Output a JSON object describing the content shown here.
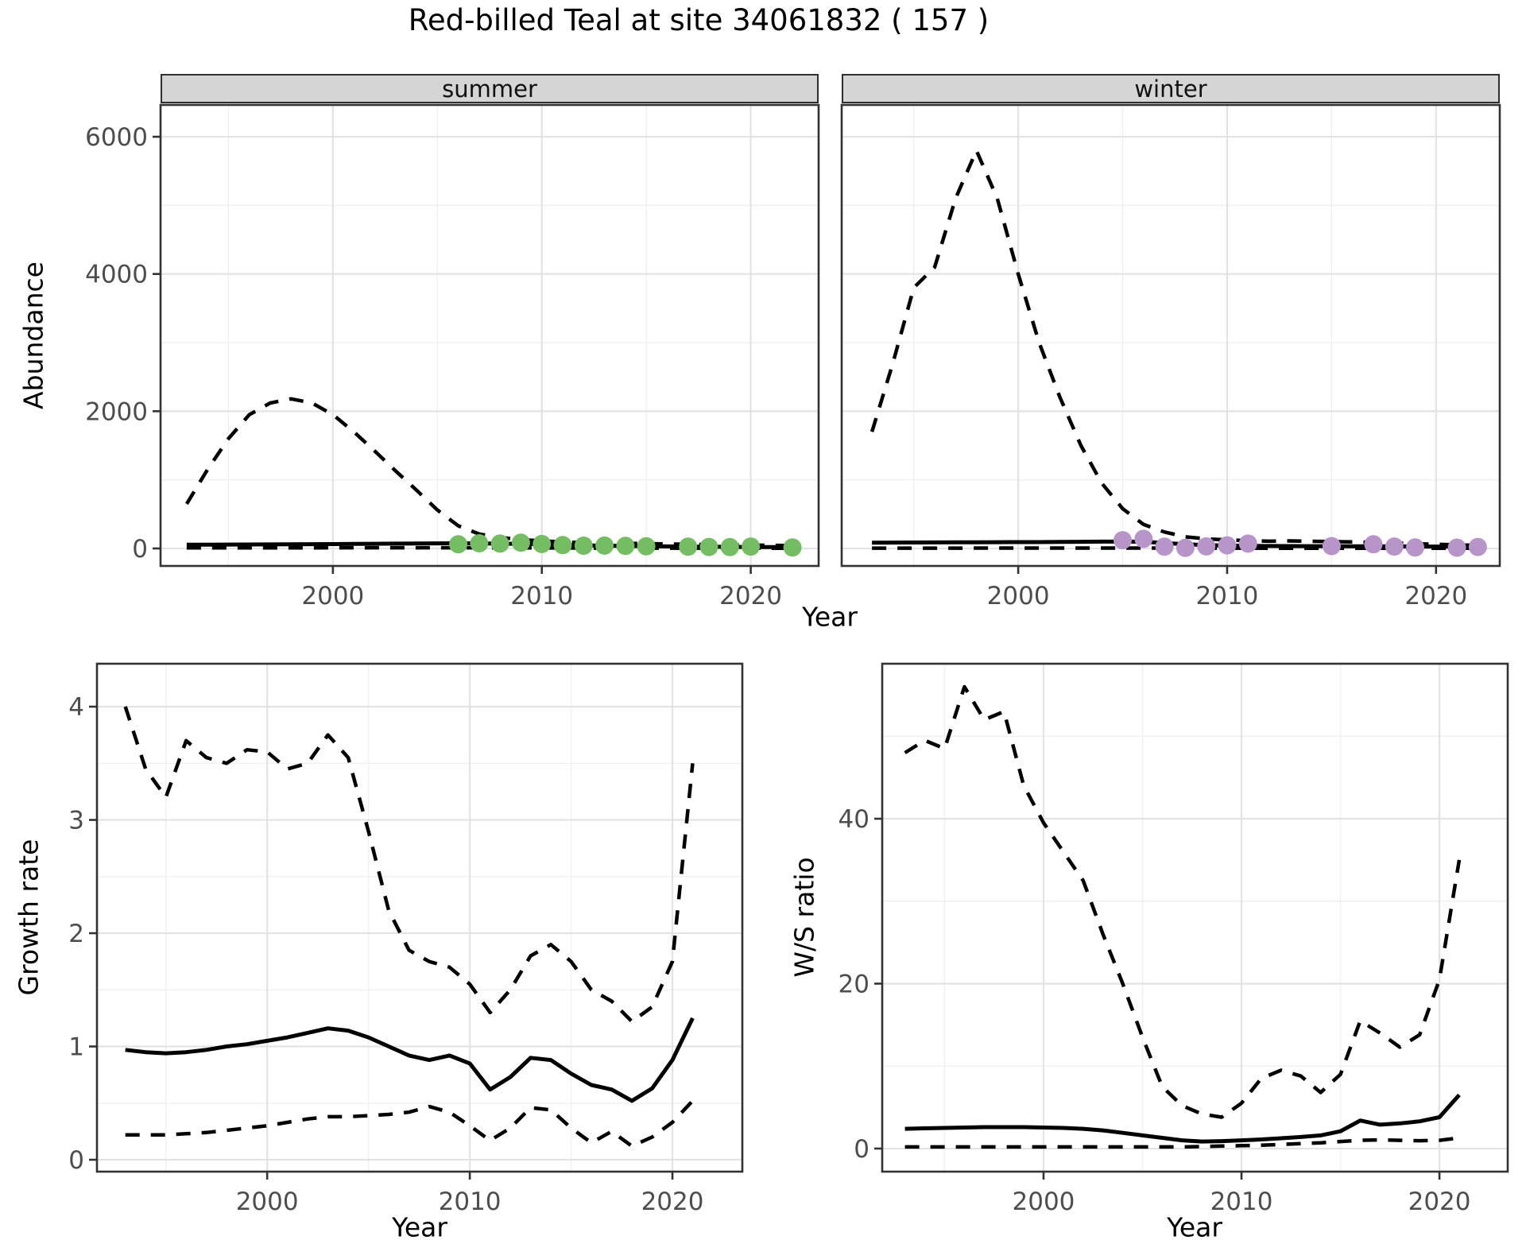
{
  "title": "Red-billed Teal at site 34061832 ( 157 )",
  "labels": {
    "facet_summer": "summer",
    "facet_winter": "winter",
    "abundance_axis": "Abundance",
    "growth_axis": "Growth rate",
    "ws_axis": "W/S ratio",
    "year_top": "Year",
    "year_growth": "Year",
    "year_ws": "Year"
  },
  "colors": {
    "summer_points": "#74bd63",
    "winter_points": "#b795c8",
    "line": "#000000",
    "strip_bg": "#d5d5d5",
    "grid_major": "#e3e3e3",
    "grid_minor": "#f0f0f0",
    "panel_border": "#333333",
    "tick_text": "#4d4d4d"
  },
  "chart_data": [
    {
      "id": "abundance-summer",
      "type": "line+scatter",
      "facet": "summer",
      "xlabel": "Year",
      "ylabel": "Abundance",
      "xlim": [
        1991.75,
        2023.25
      ],
      "ylim": [
        -255,
        6464
      ],
      "x_ticks": [
        2000,
        2010,
        2020
      ],
      "x_minor": [
        1995,
        2005,
        2015
      ],
      "y_ticks": [
        0,
        2000,
        4000,
        6000
      ],
      "y_minor": [
        1000,
        3000,
        5000
      ],
      "show_y_labels": true,
      "x_years": [
        1993,
        1994,
        1995,
        1996,
        1997,
        1998,
        1999,
        2000,
        2001,
        2002,
        2003,
        2004,
        2005,
        2006,
        2007,
        2008,
        2009,
        2010,
        2011,
        2012,
        2013,
        2014,
        2015,
        2016,
        2017,
        2018,
        2019,
        2020,
        2021,
        2022
      ],
      "series": [
        {
          "name": "mean",
          "style": "solid",
          "values": [
            55,
            56,
            57,
            58,
            59,
            60,
            62,
            64,
            66,
            68,
            70,
            72,
            74,
            75,
            73,
            70,
            66,
            60,
            52,
            45,
            40,
            36,
            33,
            30,
            27,
            25,
            23,
            21,
            19,
            17
          ]
        },
        {
          "name": "upper_ci",
          "style": "dashed",
          "values": [
            650,
            1150,
            1600,
            1950,
            2120,
            2180,
            2120,
            1950,
            1700,
            1420,
            1130,
            850,
            560,
            330,
            210,
            160,
            130,
            110,
            95,
            85,
            80,
            75,
            70,
            65,
            60,
            55,
            50,
            48,
            45,
            42
          ]
        },
        {
          "name": "lower_ci",
          "style": "dashed",
          "values": [
            8,
            8,
            8,
            8,
            9,
            9,
            9,
            10,
            10,
            10,
            10,
            10,
            10,
            10,
            10,
            9,
            9,
            8,
            7,
            6,
            6,
            5,
            5,
            5,
            4,
            4,
            4,
            4,
            3,
            3
          ]
        }
      ],
      "points": {
        "name": "observed_counts",
        "color_key": "summer_points",
        "years": [
          2006,
          2007,
          2008,
          2009,
          2010,
          2011,
          2012,
          2013,
          2014,
          2015,
          2017,
          2018,
          2019,
          2020,
          2022
        ],
        "values": [
          60,
          75,
          70,
          85,
          65,
          50,
          40,
          42,
          38,
          32,
          25,
          22,
          20,
          28,
          15
        ]
      }
    },
    {
      "id": "abundance-winter",
      "type": "line+scatter",
      "facet": "winter",
      "xlabel": "Year",
      "ylabel": "Abundance",
      "xlim": [
        1991.55,
        2023.05
      ],
      "ylim": [
        -255,
        6464
      ],
      "x_ticks": [
        2000,
        2010,
        2020
      ],
      "x_minor": [
        1995,
        2005,
        2015
      ],
      "y_ticks": [
        0,
        2000,
        4000,
        6000
      ],
      "y_minor": [
        1000,
        3000,
        5000
      ],
      "show_y_labels": false,
      "x_years": [
        1993,
        1994,
        1995,
        1996,
        1997,
        1998,
        1999,
        2000,
        2001,
        2002,
        2003,
        2004,
        2005,
        2006,
        2007,
        2008,
        2009,
        2010,
        2011,
        2012,
        2013,
        2014,
        2015,
        2016,
        2017,
        2018,
        2019,
        2020,
        2021,
        2022
      ],
      "series": [
        {
          "name": "mean",
          "style": "solid",
          "values": [
            85,
            86,
            87,
            88,
            89,
            90,
            91,
            92,
            93,
            95,
            97,
            99,
            100,
            98,
            80,
            60,
            48,
            42,
            38,
            36,
            35,
            34,
            33,
            32,
            31,
            30,
            29,
            28,
            27,
            26
          ]
        },
        {
          "name": "upper_ci",
          "style": "dashed",
          "values": [
            1700,
            2700,
            3800,
            4100,
            5100,
            5800,
            5100,
            4000,
            3000,
            2200,
            1500,
            950,
            580,
            350,
            240,
            170,
            140,
            125,
            115,
            105,
            110,
            105,
            100,
            95,
            90,
            80,
            70,
            60,
            52,
            46
          ]
        },
        {
          "name": "lower_ci",
          "style": "dashed",
          "values": [
            5,
            5,
            5,
            5,
            5,
            6,
            6,
            6,
            6,
            6,
            6,
            6,
            6,
            6,
            6,
            5,
            5,
            4,
            4,
            3,
            3,
            3,
            3,
            3,
            3,
            2,
            2,
            2,
            2,
            2
          ]
        }
      ],
      "points": {
        "name": "observed_counts",
        "color_key": "winter_points",
        "years": [
          2005,
          2006,
          2007,
          2008,
          2009,
          2010,
          2011,
          2015,
          2017,
          2018,
          2019,
          2021,
          2022
        ],
        "values": [
          120,
          140,
          25,
          8,
          30,
          45,
          70,
          35,
          60,
          28,
          15,
          12,
          22
        ]
      }
    },
    {
      "id": "growth-rate",
      "type": "line",
      "facet": null,
      "xlabel": "Year",
      "ylabel": "Growth rate",
      "xlim": [
        1991.6,
        2023.45
      ],
      "ylim": [
        -0.105,
        4.379
      ],
      "x_ticks": [
        2000,
        2010,
        2020
      ],
      "x_minor": [
        1995,
        2005,
        2015
      ],
      "y_ticks": [
        0,
        1,
        2,
        3,
        4
      ],
      "y_minor": [
        0.5,
        1.5,
        2.5,
        3.5
      ],
      "show_y_labels": true,
      "x_years": [
        1993,
        1994,
        1995,
        1996,
        1997,
        1998,
        1999,
        2000,
        2001,
        2002,
        2003,
        2004,
        2005,
        2006,
        2007,
        2008,
        2009,
        2010,
        2011,
        2012,
        2013,
        2014,
        2015,
        2016,
        2017,
        2018,
        2019,
        2020,
        2021
      ],
      "series": [
        {
          "name": "mean",
          "style": "solid",
          "values": [
            0.97,
            0.95,
            0.94,
            0.95,
            0.97,
            1.0,
            1.02,
            1.05,
            1.08,
            1.12,
            1.16,
            1.14,
            1.08,
            1.0,
            0.92,
            0.88,
            0.92,
            0.85,
            0.62,
            0.73,
            0.9,
            0.88,
            0.76,
            0.66,
            0.62,
            0.52,
            0.63,
            0.88,
            1.25
          ]
        },
        {
          "name": "upper_ci",
          "style": "dashed",
          "values": [
            4.0,
            3.45,
            3.2,
            3.7,
            3.55,
            3.5,
            3.62,
            3.6,
            3.45,
            3.5,
            3.75,
            3.55,
            2.9,
            2.2,
            1.85,
            1.75,
            1.7,
            1.55,
            1.3,
            1.5,
            1.8,
            1.9,
            1.75,
            1.5,
            1.4,
            1.22,
            1.35,
            1.75,
            3.5
          ]
        },
        {
          "name": "lower_ci",
          "style": "dashed",
          "values": [
            0.22,
            0.22,
            0.22,
            0.23,
            0.24,
            0.26,
            0.28,
            0.3,
            0.33,
            0.36,
            0.38,
            0.38,
            0.39,
            0.4,
            0.42,
            0.47,
            0.42,
            0.3,
            0.17,
            0.28,
            0.46,
            0.44,
            0.28,
            0.15,
            0.25,
            0.12,
            0.2,
            0.33,
            0.52
          ]
        }
      ]
    },
    {
      "id": "ws-ratio",
      "type": "line",
      "facet": null,
      "xlabel": "Year",
      "ylabel": "W/S ratio",
      "xlim": [
        1991.85,
        2023.45
      ],
      "ylim": [
        -2.8,
        58.8
      ],
      "x_ticks": [
        2000,
        2010,
        2020
      ],
      "x_minor": [
        1995,
        2005,
        2015
      ],
      "y_ticks": [
        0,
        20,
        40
      ],
      "y_minor": [
        10,
        30,
        50
      ],
      "show_y_labels": true,
      "x_years": [
        1993,
        1994,
        1995,
        1996,
        1997,
        1998,
        1999,
        2000,
        2001,
        2002,
        2003,
        2004,
        2005,
        2006,
        2007,
        2008,
        2009,
        2010,
        2011,
        2012,
        2013,
        2014,
        2015,
        2016,
        2017,
        2018,
        2019,
        2020,
        2021
      ],
      "series": [
        {
          "name": "mean",
          "style": "solid",
          "values": [
            2.4,
            2.45,
            2.5,
            2.55,
            2.6,
            2.6,
            2.6,
            2.55,
            2.5,
            2.4,
            2.2,
            1.9,
            1.6,
            1.3,
            1.0,
            0.85,
            0.9,
            1.0,
            1.1,
            1.25,
            1.4,
            1.6,
            2.1,
            3.4,
            2.9,
            3.05,
            3.3,
            3.8,
            6.5
          ]
        },
        {
          "name": "upper_ci",
          "style": "dashed",
          "values": [
            48,
            49.5,
            48.5,
            56,
            52,
            53,
            44,
            39.5,
            36,
            32.5,
            26,
            20,
            13.5,
            7.5,
            5.2,
            4.2,
            3.8,
            5.5,
            8.5,
            9.5,
            8.8,
            6.8,
            9,
            15.5,
            14,
            12.3,
            13.8,
            20.5,
            35
          ]
        },
        {
          "name": "lower_ci",
          "style": "dashed",
          "values": [
            0.2,
            0.2,
            0.2,
            0.2,
            0.2,
            0.2,
            0.2,
            0.2,
            0.2,
            0.2,
            0.2,
            0.2,
            0.2,
            0.2,
            0.2,
            0.25,
            0.3,
            0.35,
            0.4,
            0.5,
            0.6,
            0.7,
            0.85,
            1.0,
            1.05,
            1.0,
            0.95,
            1.0,
            1.3
          ]
        }
      ]
    }
  ]
}
